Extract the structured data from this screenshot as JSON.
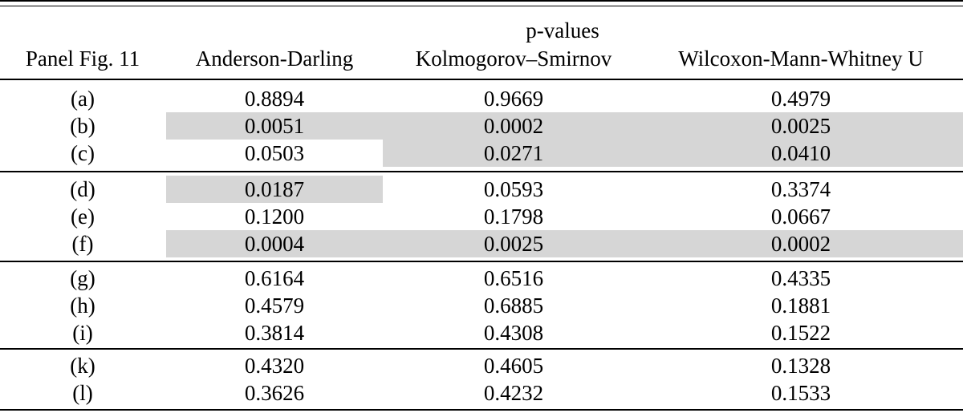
{
  "table": {
    "group_header": "p-values",
    "columns": [
      "Panel Fig. 11",
      "Anderson-Darling",
      "Kolmogorov–Smirnov",
      "Wilcoxon-Mann-Whitney U"
    ],
    "row_groups": [
      [
        {
          "label": "(a)",
          "values": [
            "0.8894",
            "0.9669",
            "0.4979"
          ],
          "shaded": [
            false,
            false,
            false
          ]
        },
        {
          "label": "(b)",
          "values": [
            "0.0051",
            "0.0002",
            "0.0025"
          ],
          "shaded": [
            true,
            true,
            true
          ]
        },
        {
          "label": "(c)",
          "values": [
            "0.0503",
            "0.0271",
            "0.0410"
          ],
          "shaded": [
            false,
            true,
            true
          ]
        }
      ],
      [
        {
          "label": "(d)",
          "values": [
            "0.0187",
            "0.0593",
            "0.3374"
          ],
          "shaded": [
            true,
            false,
            false
          ]
        },
        {
          "label": "(e)",
          "values": [
            "0.1200",
            "0.1798",
            "0.0667"
          ],
          "shaded": [
            false,
            false,
            false
          ]
        },
        {
          "label": "(f)",
          "values": [
            "0.0004",
            "0.0025",
            "0.0002"
          ],
          "shaded": [
            true,
            true,
            true
          ]
        }
      ],
      [
        {
          "label": "(g)",
          "values": [
            "0.6164",
            "0.6516",
            "0.4335"
          ],
          "shaded": [
            false,
            false,
            false
          ]
        },
        {
          "label": "(h)",
          "values": [
            "0.4579",
            "0.6885",
            "0.1881"
          ],
          "shaded": [
            false,
            false,
            false
          ]
        },
        {
          "label": "(i)",
          "values": [
            "0.3814",
            "0.4308",
            "0.1522"
          ],
          "shaded": [
            false,
            false,
            false
          ]
        }
      ],
      [
        {
          "label": "(k)",
          "values": [
            "0.4320",
            "0.4605",
            "0.1328"
          ],
          "shaded": [
            false,
            false,
            false
          ]
        },
        {
          "label": "(l)",
          "values": [
            "0.3626",
            "0.4232",
            "0.1533"
          ],
          "shaded": [
            false,
            false,
            false
          ]
        }
      ]
    ],
    "colors": {
      "highlight": "#d6d6d6",
      "rule": "#000000",
      "text": "#000000"
    }
  }
}
